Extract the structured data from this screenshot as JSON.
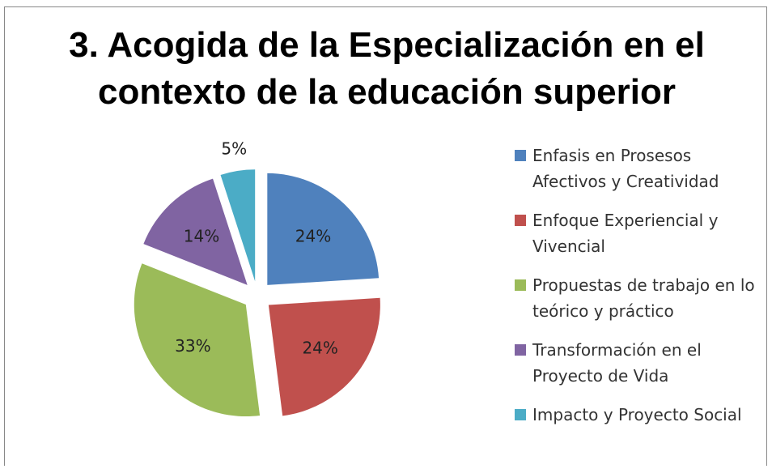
{
  "chart_data": {
    "type": "pie",
    "title": "3. Acogida de la Especialización en el contexto de la educación superior",
    "title_lines": [
      "3. Acogida de la Especialización en el",
      "contexto de la educación superior"
    ],
    "categories": [
      "Enfasis en Prosesos Afectivos y Creatividad",
      "Enfoque Experiencial y Vivencial",
      "Propuestas de trabajo en lo teórico y práctico",
      "Transformación en el Proyecto de Vida",
      "Impacto y Proyecto Social"
    ],
    "values": [
      24,
      24,
      33,
      14,
      5
    ],
    "value_labels": [
      "24%",
      "24%",
      "33%",
      "14%",
      "5%"
    ],
    "colors": [
      "#4f81bd",
      "#c0504d",
      "#9bbb59",
      "#8064a2",
      "#4bacc6"
    ],
    "legend": "right"
  }
}
